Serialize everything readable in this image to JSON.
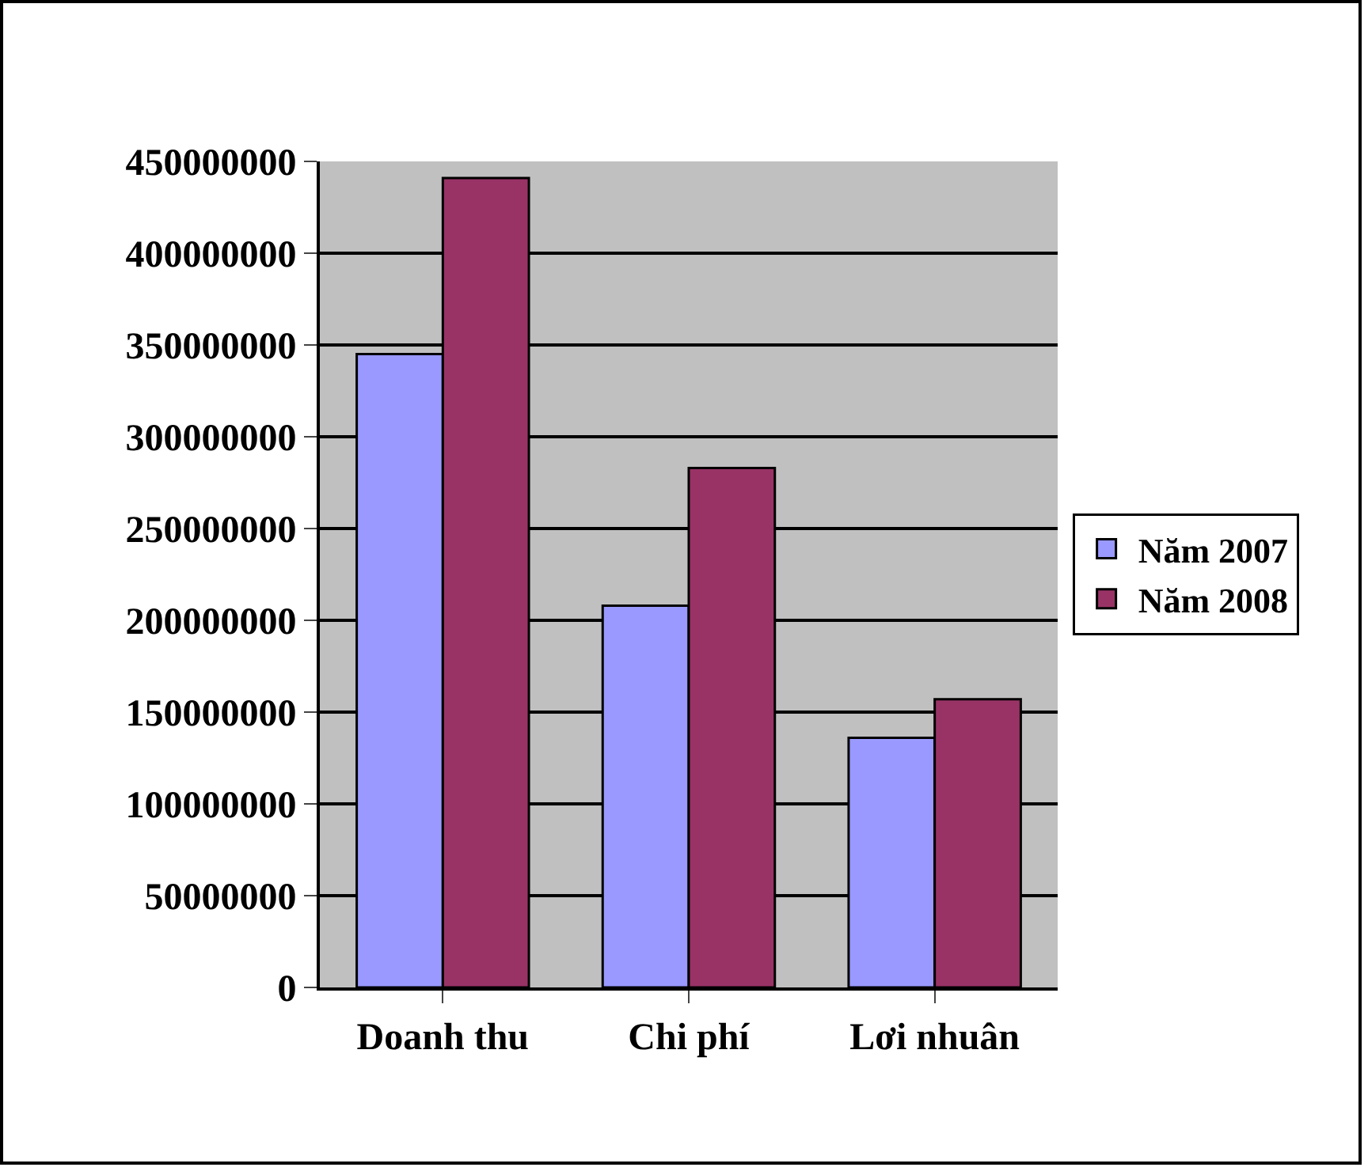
{
  "chart_data": {
    "type": "bar",
    "categories": [
      "Doanh thu",
      "Chi phí",
      "Lơi nhuân"
    ],
    "series": [
      {
        "name": "Năm 2007",
        "color": "#9999ff",
        "values": [
          345000000,
          208000000,
          136000000
        ]
      },
      {
        "name": "Năm 2008",
        "color": "#993366",
        "values": [
          441000000,
          283000000,
          157000000
        ]
      }
    ],
    "ylim": [
      0,
      450000000
    ],
    "yticks": [
      0,
      50000000,
      100000000,
      150000000,
      200000000,
      250000000,
      300000000,
      350000000,
      400000000,
      450000000
    ],
    "grid": "y",
    "legend": "right"
  }
}
